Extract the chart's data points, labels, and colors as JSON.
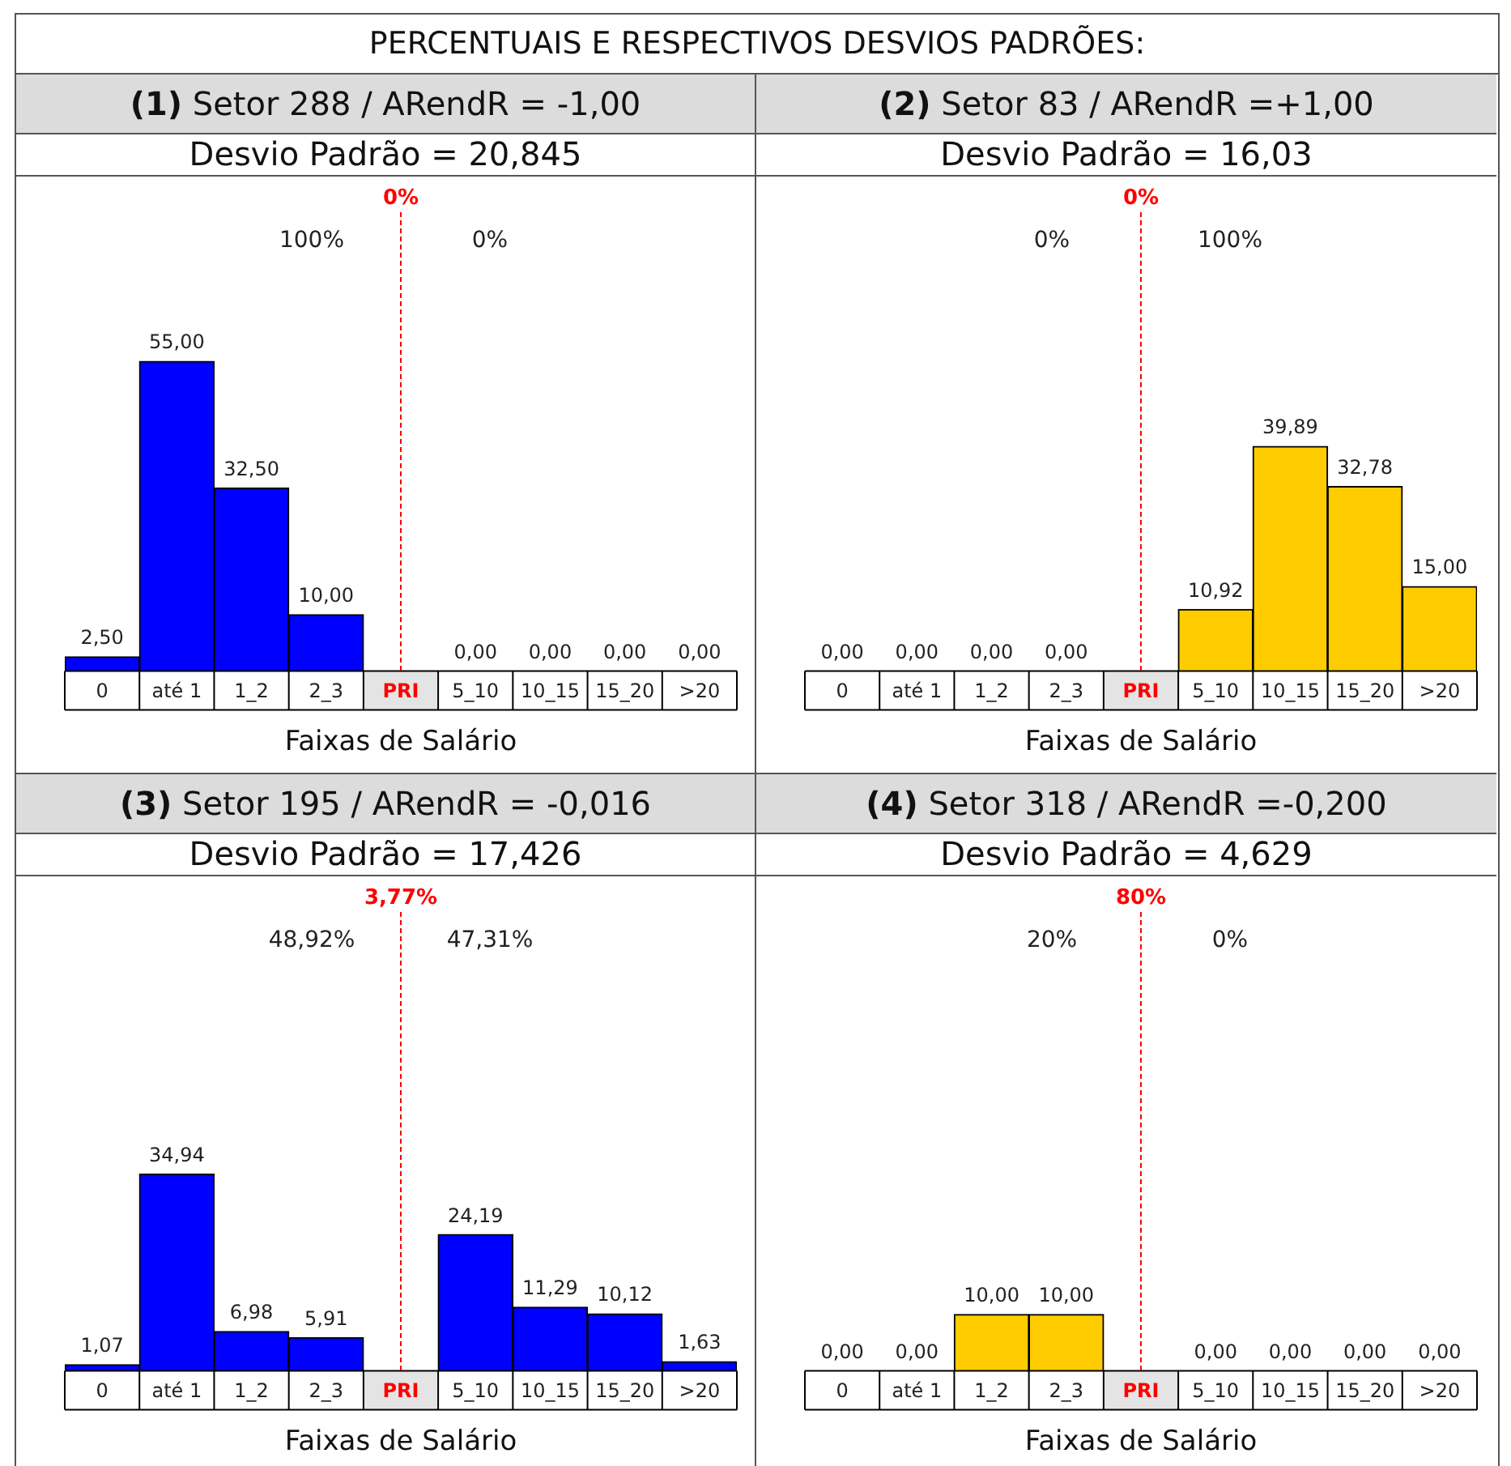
{
  "chart_data": [
    {
      "type": "other",
      "title": "PERCENTUAIS E RESPECTIVOS DESVIOS PADRÕES:"
    },
    {
      "type": "bar",
      "title": "(1) Setor 288 / ARendR = -1,00",
      "subtitle": "Desvio Padrão = 20,845",
      "xlabel": "Faixas de Salário",
      "categories": [
        "0",
        "até 1",
        "1_2",
        "2_3",
        "PRI",
        "5_10",
        "10_15",
        "15_20",
        ">20"
      ],
      "values": [
        2.5,
        55,
        32.5,
        10,
        null,
        0,
        0,
        0,
        0
      ],
      "value_labels": [
        "2,50",
        "55,00",
        "32,50",
        "10,00",
        null,
        "0,00",
        "0,00",
        "0,00",
        "0,00"
      ],
      "color": "#0000ff",
      "ref_lines": [
        {
          "axis": "x",
          "value": "PRI",
          "label": "0%",
          "color": "#ff0000",
          "line_style": "dashed"
        }
      ],
      "annotations": [
        "100%",
        "0%"
      ],
      "grid": false,
      "legend": false
    },
    {
      "type": "bar",
      "title": "(2) Setor 83 / ARendR =+1,00",
      "subtitle": "Desvio Padrão = 16,03",
      "xlabel": "Faixas de Salário",
      "categories": [
        "0",
        "até 1",
        "1_2",
        "2_3",
        "PRI",
        "5_10",
        "10_15",
        "15_20",
        ">20"
      ],
      "values": [
        0,
        0,
        0,
        0,
        null,
        10.92,
        39.89,
        32.78,
        15
      ],
      "value_labels": [
        "0,00",
        "0,00",
        "0,00",
        "0,00",
        null,
        "10,92",
        "39,89",
        "32,78",
        "15,00"
      ],
      "color": "#ffcc00",
      "ref_lines": [
        {
          "axis": "x",
          "value": "PRI",
          "label": "0%",
          "color": "#ff0000",
          "line_style": "dashed"
        }
      ],
      "annotations": [
        "0%",
        "100%"
      ],
      "grid": false,
      "legend": false
    },
    {
      "type": "bar",
      "title": "(3) Setor 195 / ARendR = -0,016",
      "subtitle": "Desvio Padrão = 17,426",
      "xlabel": "Faixas de Salário",
      "categories": [
        "0",
        "até 1",
        "1_2",
        "2_3",
        "PRI",
        "5_10",
        "10_15",
        "15_20",
        ">20"
      ],
      "values": [
        1.07,
        34.94,
        6.98,
        5.91,
        null,
        24.19,
        11.29,
        10.12,
        1.63
      ],
      "value_labels": [
        "1,07",
        "34,94",
        "6,98",
        "5,91",
        null,
        "24,19",
        "11,29",
        "10,12",
        "1,63"
      ],
      "color": "#0000ff",
      "ref_lines": [
        {
          "axis": "x",
          "value": "PRI",
          "label": "3,77%",
          "color": "#ff0000",
          "line_style": "dashed"
        }
      ],
      "annotations": [
        "48,92%",
        "47,31%"
      ],
      "grid": false,
      "legend": false
    },
    {
      "type": "bar",
      "title": "(4) Setor 318 / ARendR =-0,200",
      "subtitle": "Desvio Padrão = 4,629",
      "xlabel": "Faixas de Salário",
      "categories": [
        "0",
        "até 1",
        "1_2",
        "2_3",
        "PRI",
        "5_10",
        "10_15",
        "15_20",
        ">20"
      ],
      "values": [
        0,
        0,
        10,
        10,
        null,
        0,
        0,
        0,
        0
      ],
      "value_labels": [
        "0,00",
        "0,00",
        "10,00",
        "10,00",
        null,
        "0,00",
        "0,00",
        "0,00",
        "0,00"
      ],
      "color": "#ffcc00",
      "ref_lines": [
        {
          "axis": "x",
          "value": "PRI",
          "label": "80%",
          "color": "#ff0000",
          "line_style": "dashed"
        }
      ],
      "annotations": [
        "20%",
        "0%"
      ],
      "grid": false,
      "legend": false
    }
  ]
}
